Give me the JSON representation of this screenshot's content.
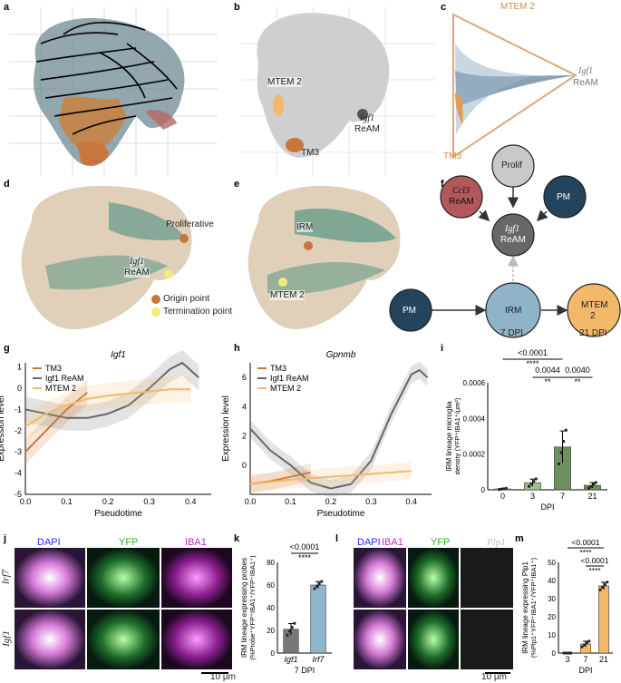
{
  "panels": {
    "a": "a",
    "b": "b",
    "c": "c",
    "d": "d",
    "e": "e",
    "f": "f",
    "g": "g",
    "h": "h",
    "i": "i",
    "j": "j",
    "k": "k",
    "l": "l",
    "m": "m"
  },
  "b_labels": {
    "mtem2": "MTEM 2",
    "igf1": "Igf1",
    "ream": "ReAM",
    "tm3": "TM3"
  },
  "c_labels": {
    "mtem2": "MTEM 2",
    "igf1": "Igf1",
    "ream": "ReAM",
    "tm3": "TM3"
  },
  "d_labels": {
    "prolif": "Proliferative",
    "igf1": "Igf1",
    "ream": "ReAM",
    "origin": "Origin point",
    "term": "Termination point"
  },
  "e_labels": {
    "irm": "IRM",
    "mtem2": "MTEM 2"
  },
  "f_nodes": {
    "prolif": "Prolif",
    "ccl3": "Ccl3",
    "ream1": "ReAM",
    "pm1": "PM",
    "igf1": "Igf1",
    "ream2": "ReAM",
    "pm2": "PM",
    "irm": "IRM",
    "mtem": "MTEM",
    "mtem_n": "2",
    "dpi7": "7 DPI",
    "dpi21": "21 DPI"
  },
  "colors": {
    "tm3": "#c8763b",
    "igf1": "#666666",
    "mtem2": "#f2b96a",
    "prolif": "#c9c9c9",
    "ccl3": "#b3585a",
    "pm": "#22445f",
    "irm": "#8fb3c8",
    "green": "#6e8f5f",
    "blue_bar": "#8fb5cc"
  },
  "g": {
    "title": "Igf1",
    "ylabel": "Expression level",
    "xlabel": "Pseudotime",
    "legend": [
      "TM3",
      "Igf1 ReAM",
      "MTEM 2"
    ],
    "yticks": [
      "1",
      "0",
      "-1",
      "-2",
      "-3",
      "-4",
      "-5"
    ],
    "xticks": [
      "0.0",
      "0.1",
      "0.2",
      "0.3",
      "0.4"
    ]
  },
  "h": {
    "title": "Gpnmb",
    "ylabel": "Expression level",
    "xlabel": "Pseudotime",
    "legend": [
      "TM3",
      "Igf1 ReAM",
      "MTEM 2"
    ],
    "yticks": [
      "6",
      "4",
      "2",
      "0"
    ],
    "xticks": [
      "0.0",
      "0.1",
      "0.2",
      "0.3",
      "0.4"
    ]
  },
  "i": {
    "ylabel1": "IRM lineage microglia",
    "ylabel2": "density (YFP⁺IBA1⁺/µm²)",
    "xlabel": "DPI",
    "yticks": [
      "0.0006",
      "0.0004",
      "0.0002",
      "0"
    ],
    "xticks": [
      "0",
      "3",
      "7",
      "21"
    ],
    "p1": "<0.0001",
    "p2": "0.0044",
    "p3": "0.0040",
    "s1": "****",
    "s2": "**",
    "s3": "**"
  },
  "j": {
    "dapi": "DAPI",
    "yfp": "YFP",
    "iba1": "IBA1",
    "row1": "Irf7",
    "row2": "Igf1",
    "scale": "10 µm"
  },
  "k": {
    "ylabel1": "IRM lineage expressing probes",
    "ylabel2": "(%Probe⁺YFP⁺IBA1⁺/YFP⁺IBA1⁺)",
    "yticks": [
      "80",
      "60",
      "40",
      "20",
      "0"
    ],
    "xticks": [
      "Igf1",
      "Irf7"
    ],
    "xlabel": "7 DPI",
    "p": "<0.0001",
    "s": "****"
  },
  "l": {
    "dapi": "DAPI",
    "iba1": "IBA1",
    "yfp": "YFP",
    "plp1": "Plp1",
    "scale": "10 µm"
  },
  "m": {
    "ylabel1": "IRM lineage expressing Plp1",
    "ylabel2": "(%Plp1⁺YFP⁺IBA1⁺/YFP⁺IBA1⁺)",
    "yticks": [
      "50",
      "40",
      "30",
      "20",
      "10",
      "0"
    ],
    "xticks": [
      "3",
      "7",
      "21"
    ],
    "xlabel": "DPI",
    "p1": "<0.0001",
    "p2": "<0.0001",
    "s1": "****",
    "s2": "****"
  },
  "chart_data": [
    {
      "type": "line",
      "title": "Igf1",
      "xlabel": "Pseudotime",
      "ylabel": "Expression level",
      "xlim": [
        0,
        0.45
      ],
      "ylim": [
        -5,
        1.2
      ],
      "series": [
        {
          "name": "TM3",
          "x": [
            0,
            0.05,
            0.1,
            0.15
          ],
          "values": [
            -3,
            -2,
            -1,
            -0.2
          ]
        },
        {
          "name": "Igf1 ReAM",
          "x": [
            0,
            0.05,
            0.1,
            0.15,
            0.2,
            0.25,
            0.3,
            0.35,
            0.38,
            0.42
          ],
          "values": [
            -1,
            -1.2,
            -1.4,
            -1.4,
            -1.2,
            -0.8,
            0,
            0.9,
            1.2,
            0.5
          ]
        },
        {
          "name": "MTEM 2",
          "x": [
            0,
            0.05,
            0.1,
            0.15,
            0.2,
            0.25,
            0.3,
            0.35,
            0.4
          ],
          "values": [
            -1.8,
            -1.2,
            -0.8,
            -0.5,
            -0.35,
            -0.25,
            -0.15,
            -0.05,
            -0.05
          ]
        }
      ]
    },
    {
      "type": "line",
      "title": "Gpnmb",
      "xlabel": "Pseudotime",
      "ylabel": "Expression level",
      "xlim": [
        0,
        0.45
      ],
      "ylim": [
        -2,
        7
      ],
      "series": [
        {
          "name": "TM3",
          "x": [
            0,
            0.05,
            0.1,
            0.15
          ],
          "values": [
            -1.3,
            -1.1,
            -0.8,
            -0.5
          ]
        },
        {
          "name": "Igf1 ReAM",
          "x": [
            0,
            0.05,
            0.1,
            0.15,
            0.2,
            0.25,
            0.3,
            0.35,
            0.4,
            0.42,
            0.44
          ],
          "values": [
            2.5,
            1,
            0,
            -1.2,
            -1.6,
            -1.3,
            0.3,
            3.5,
            6.2,
            6.5,
            6
          ]
        },
        {
          "name": "MTEM 2",
          "x": [
            0,
            0.1,
            0.2,
            0.3,
            0.4
          ],
          "values": [
            -1.3,
            -1.0,
            -0.8,
            -0.6,
            -0.4
          ]
        }
      ]
    },
    {
      "type": "bar",
      "title": "",
      "xlabel": "DPI",
      "ylabel": "IRM lineage microglia density",
      "categories": [
        "0",
        "3",
        "7",
        "21"
      ],
      "values": [
        5e-06,
        4e-05,
        0.00024,
        2.5e-05
      ],
      "errors": [
        3e-06,
        2e-05,
        9e-05,
        1.5e-05
      ],
      "ylim": [
        0,
        0.0006
      ]
    },
    {
      "type": "bar",
      "title": "",
      "xlabel": "7 DPI",
      "ylabel": "IRM lineage expressing probes (%)",
      "categories": [
        "Igf1",
        "Irf7"
      ],
      "values": [
        21,
        60
      ],
      "errors": [
        5,
        3
      ],
      "ylim": [
        0,
        80
      ]
    },
    {
      "type": "bar",
      "title": "",
      "xlabel": "DPI",
      "ylabel": "IRM lineage expressing Plp1 (%)",
      "categories": [
        "3",
        "7",
        "21"
      ],
      "values": [
        0,
        5,
        37
      ],
      "errors": [
        0,
        1.5,
        2
      ],
      "ylim": [
        0,
        50
      ]
    }
  ]
}
